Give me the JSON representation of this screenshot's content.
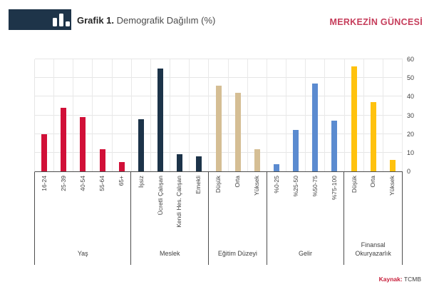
{
  "header": {
    "title_prefix": "Grafik 1.",
    "title_rest": " Demografik Dağılım (%)",
    "brand": "MERKEZİN GÜNCESİ"
  },
  "footer": {
    "source_label": "Kaynak:",
    "source_value": "TCMB"
  },
  "colors": {
    "banner_navy": "#1E3449",
    "brand_red": "#C63D5B",
    "source_red": "#C8203C",
    "grid": "#e6e6e6",
    "axis": "#4d4d4d"
  },
  "chart_data": {
    "type": "bar",
    "title": "Grafik 1. Demografik Dağılım (%)",
    "ylabel": "",
    "xlabel": "",
    "ylim": [
      0,
      60
    ],
    "yticks": [
      0,
      10,
      20,
      30,
      40,
      50,
      60
    ],
    "grid": true,
    "legend": false,
    "groups": [
      {
        "label": "Yaş",
        "color": "#D11038",
        "categories": [
          "16-24",
          "25-39",
          "40-54",
          "55-64",
          "65+"
        ],
        "values": [
          20,
          34,
          29,
          12,
          5
        ]
      },
      {
        "label": "Meslek",
        "color": "#1C3349",
        "categories": [
          "İşsiz",
          "Ücretli Çalışan",
          "Kendi Hes. Çalışan",
          "Emekli"
        ],
        "values": [
          28,
          55,
          9,
          8
        ]
      },
      {
        "label": "Eğitim Düzeyi",
        "color": "#D5BE94",
        "categories": [
          "Düşük",
          "Orta",
          "Yüksek"
        ],
        "values": [
          46,
          42,
          12
        ]
      },
      {
        "label": "Gelir",
        "color": "#5B8BD0",
        "categories": [
          "%0-25",
          "%25-50",
          "%50-75",
          "%75-100"
        ],
        "values": [
          4,
          22,
          47,
          27
        ]
      },
      {
        "label": "Finansal Okuryazarlık",
        "color": "#FFC20E",
        "categories": [
          "Düşük",
          "Orta",
          "Yüksek"
        ],
        "values": [
          56,
          37,
          6
        ]
      }
    ]
  }
}
